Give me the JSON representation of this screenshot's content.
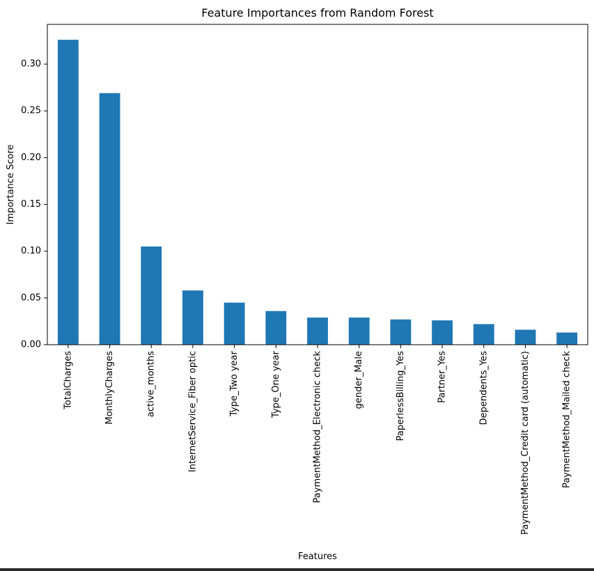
{
  "chart_data": {
    "type": "bar",
    "title": "Feature Importances from Random Forest",
    "xlabel": "Features",
    "ylabel": "Importance Score",
    "categories": [
      "TotalCharges",
      "MonthlyCharges",
      "active_months",
      "InternetService_Fiber optic",
      "Type_Two year",
      "Type_One year",
      "PaymentMethod_Electronic check",
      "gender_Male",
      "PaperlessBilling_Yes",
      "Partner_Yes",
      "Dependents_Yes",
      "PaymentMethod_Credit card (automatic)",
      "PaymentMethod_Mailed check"
    ],
    "values": [
      0.326,
      0.269,
      0.105,
      0.058,
      0.045,
      0.036,
      0.029,
      0.029,
      0.027,
      0.026,
      0.022,
      0.016,
      0.013
    ],
    "ylim": [
      0,
      0.3425
    ],
    "yticks": [
      "0.00",
      "0.05",
      "0.10",
      "0.15",
      "0.20",
      "0.25",
      "0.30"
    ],
    "ytick_values": [
      0,
      0.05,
      0.1,
      0.15,
      0.2,
      0.25,
      0.3
    ],
    "grid": false,
    "bar_color": "#1f77b4"
  }
}
